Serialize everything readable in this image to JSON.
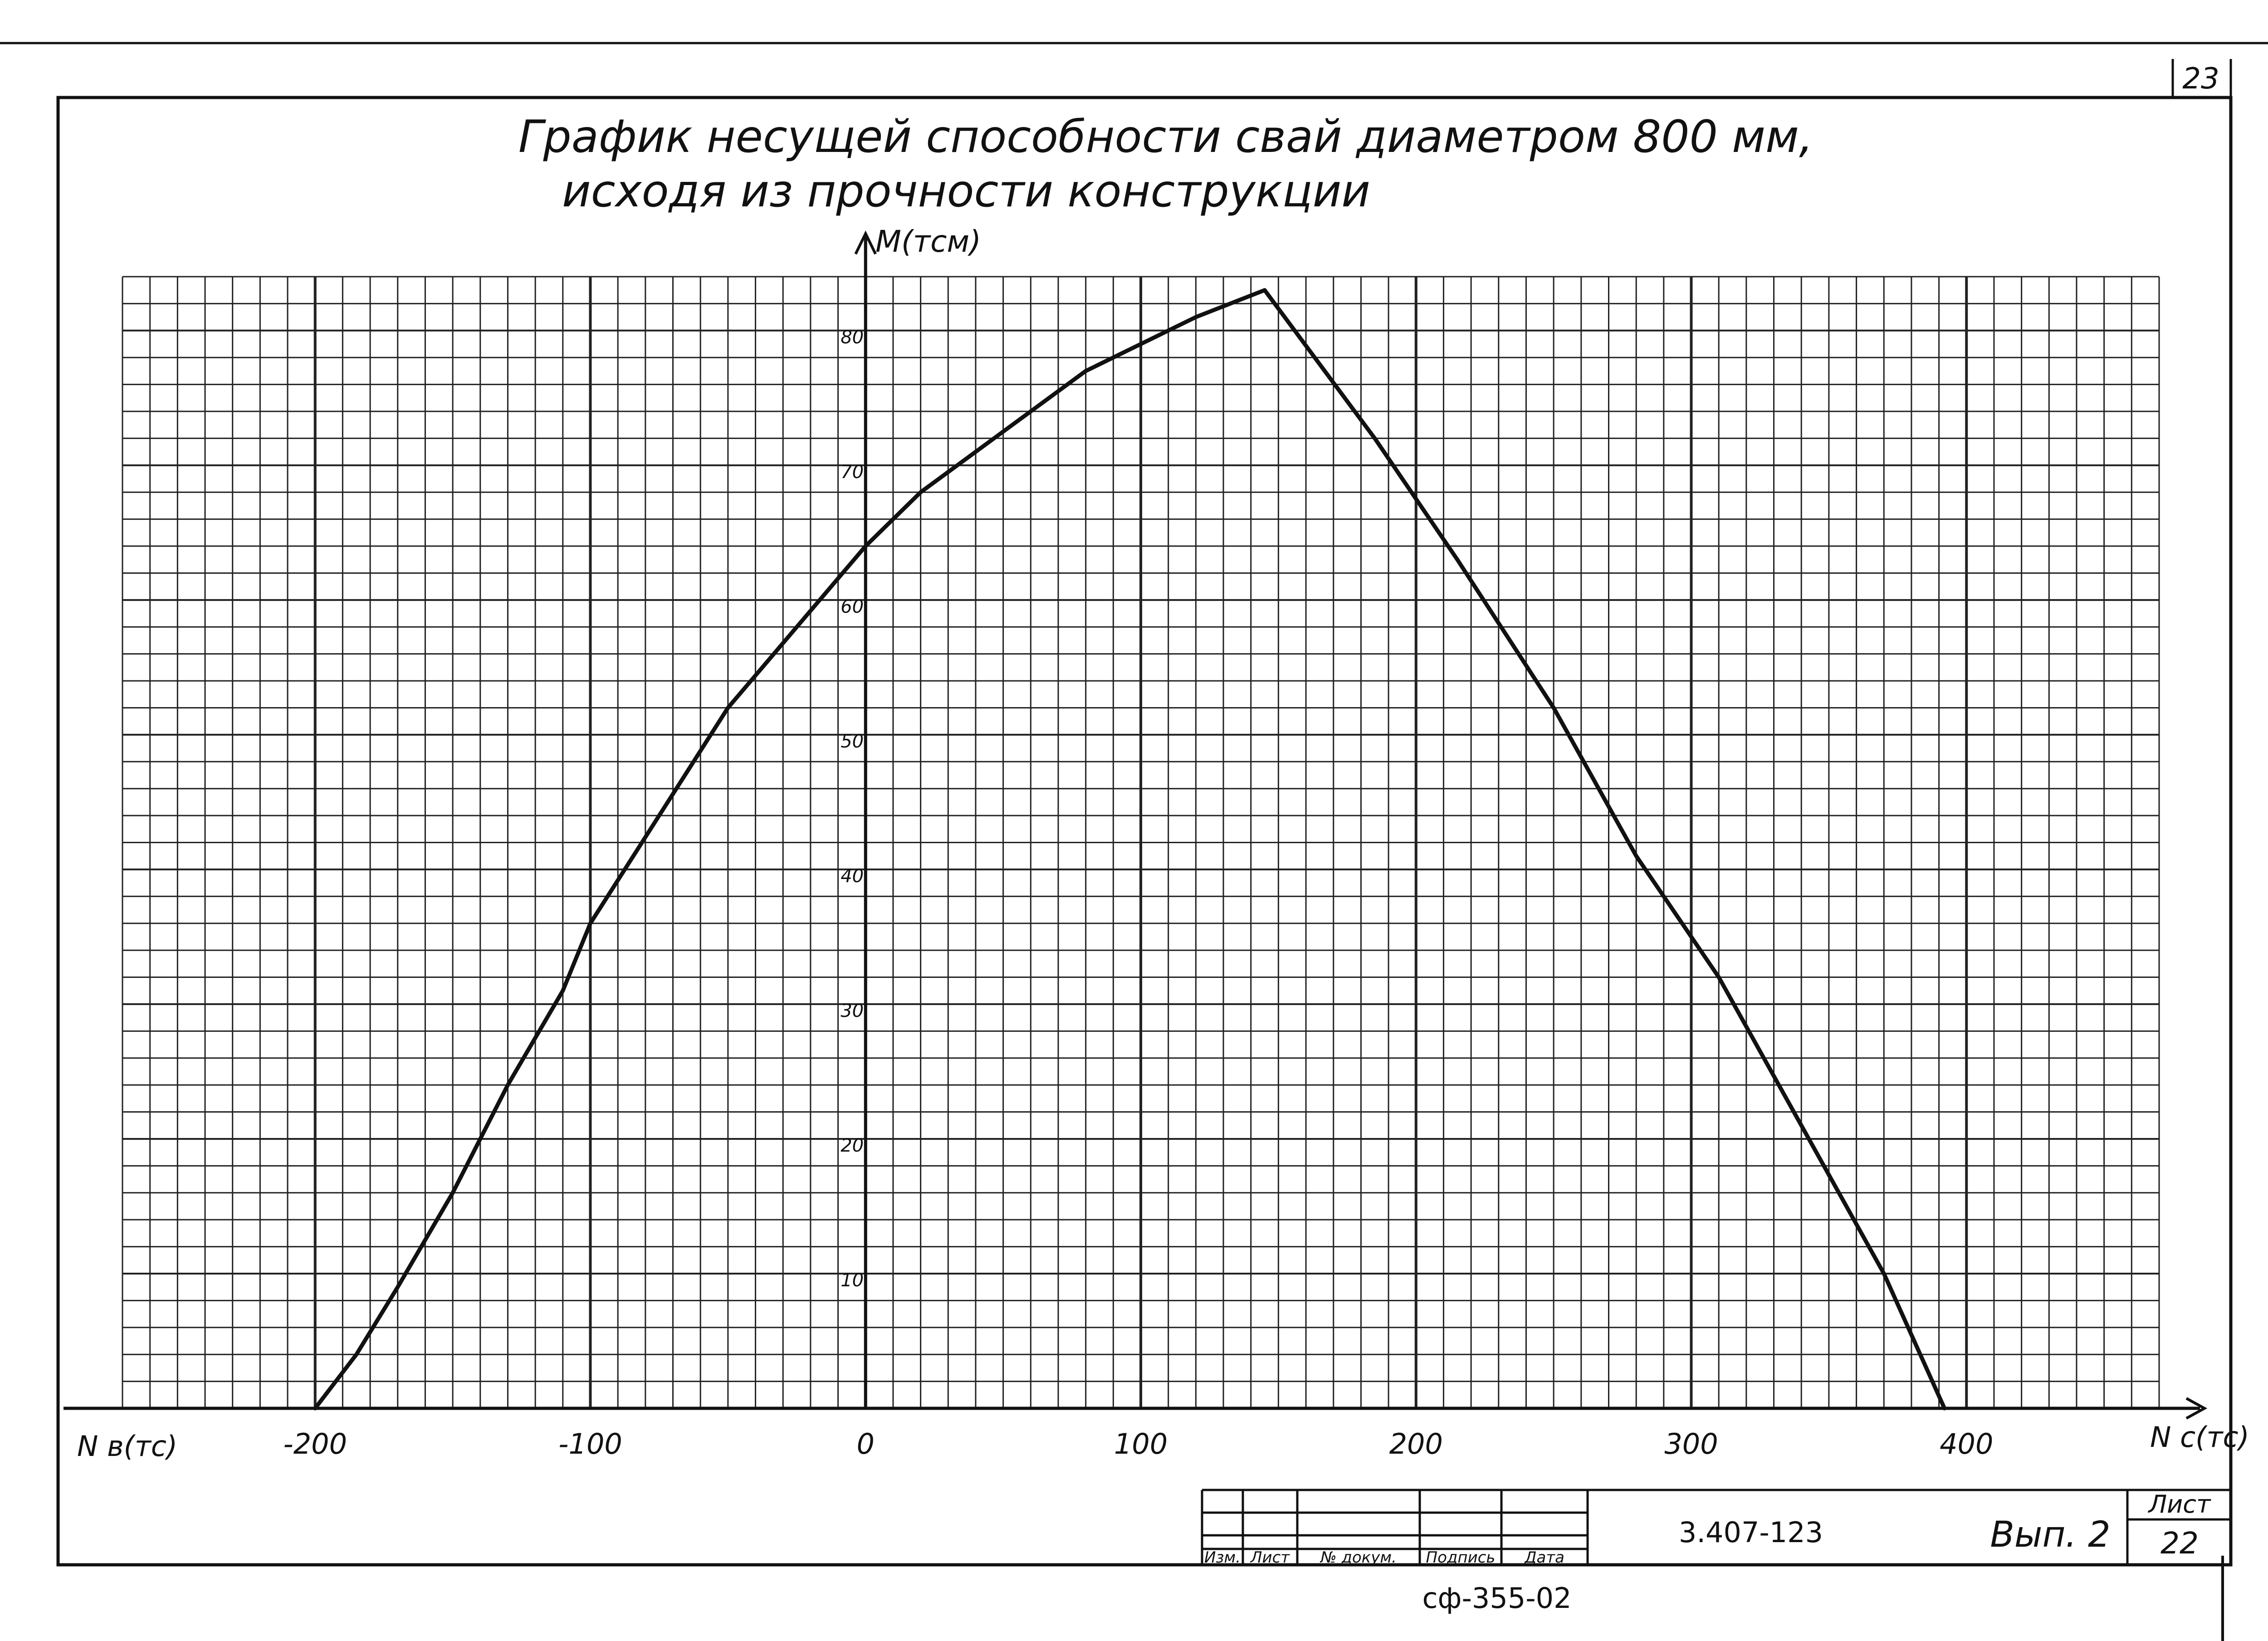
{
  "sheet": {
    "top_page_number": "23",
    "code": "сф-355-02"
  },
  "title_block": {
    "headers": [
      "Изм.",
      "Лист",
      "№ докум.",
      "Подпись",
      "Дата"
    ],
    "designation": "3.407-123",
    "issue": "Вып. 2",
    "sheet_label": "Лист",
    "sheet_number": "22"
  },
  "chart_data": {
    "type": "line",
    "title_line1": "График несущей способности свай диаметром 800 мм,",
    "title_line2": "исходя из прочности конструкции",
    "ylabel": "М(тсм)",
    "xlabel_left": "N в(тс)",
    "xlabel_right": "N с(тс)",
    "x_ticks": [
      "-200",
      "-100",
      "0",
      "100",
      "200",
      "300",
      "400"
    ],
    "y_ticks": [
      "10",
      "20",
      "30",
      "40",
      "50",
      "60",
      "70",
      "80"
    ],
    "xlim": [
      -270,
      470
    ],
    "ylim": [
      0,
      84
    ],
    "grid": true,
    "series": [
      {
        "x": [
          -200,
          -185,
          -170,
          -150,
          -130,
          -110,
          -100,
          -75,
          -50,
          -25,
          0,
          20,
          40,
          60,
          80,
          100,
          120,
          145,
          185,
          215,
          250,
          280,
          310,
          340,
          370,
          392
        ],
        "y": [
          0,
          4,
          9,
          16,
          24,
          31,
          36,
          44,
          52,
          58,
          64,
          68,
          71,
          74,
          77,
          79,
          81,
          83,
          72,
          63,
          52,
          41,
          32,
          21,
          10,
          0
        ]
      }
    ]
  }
}
